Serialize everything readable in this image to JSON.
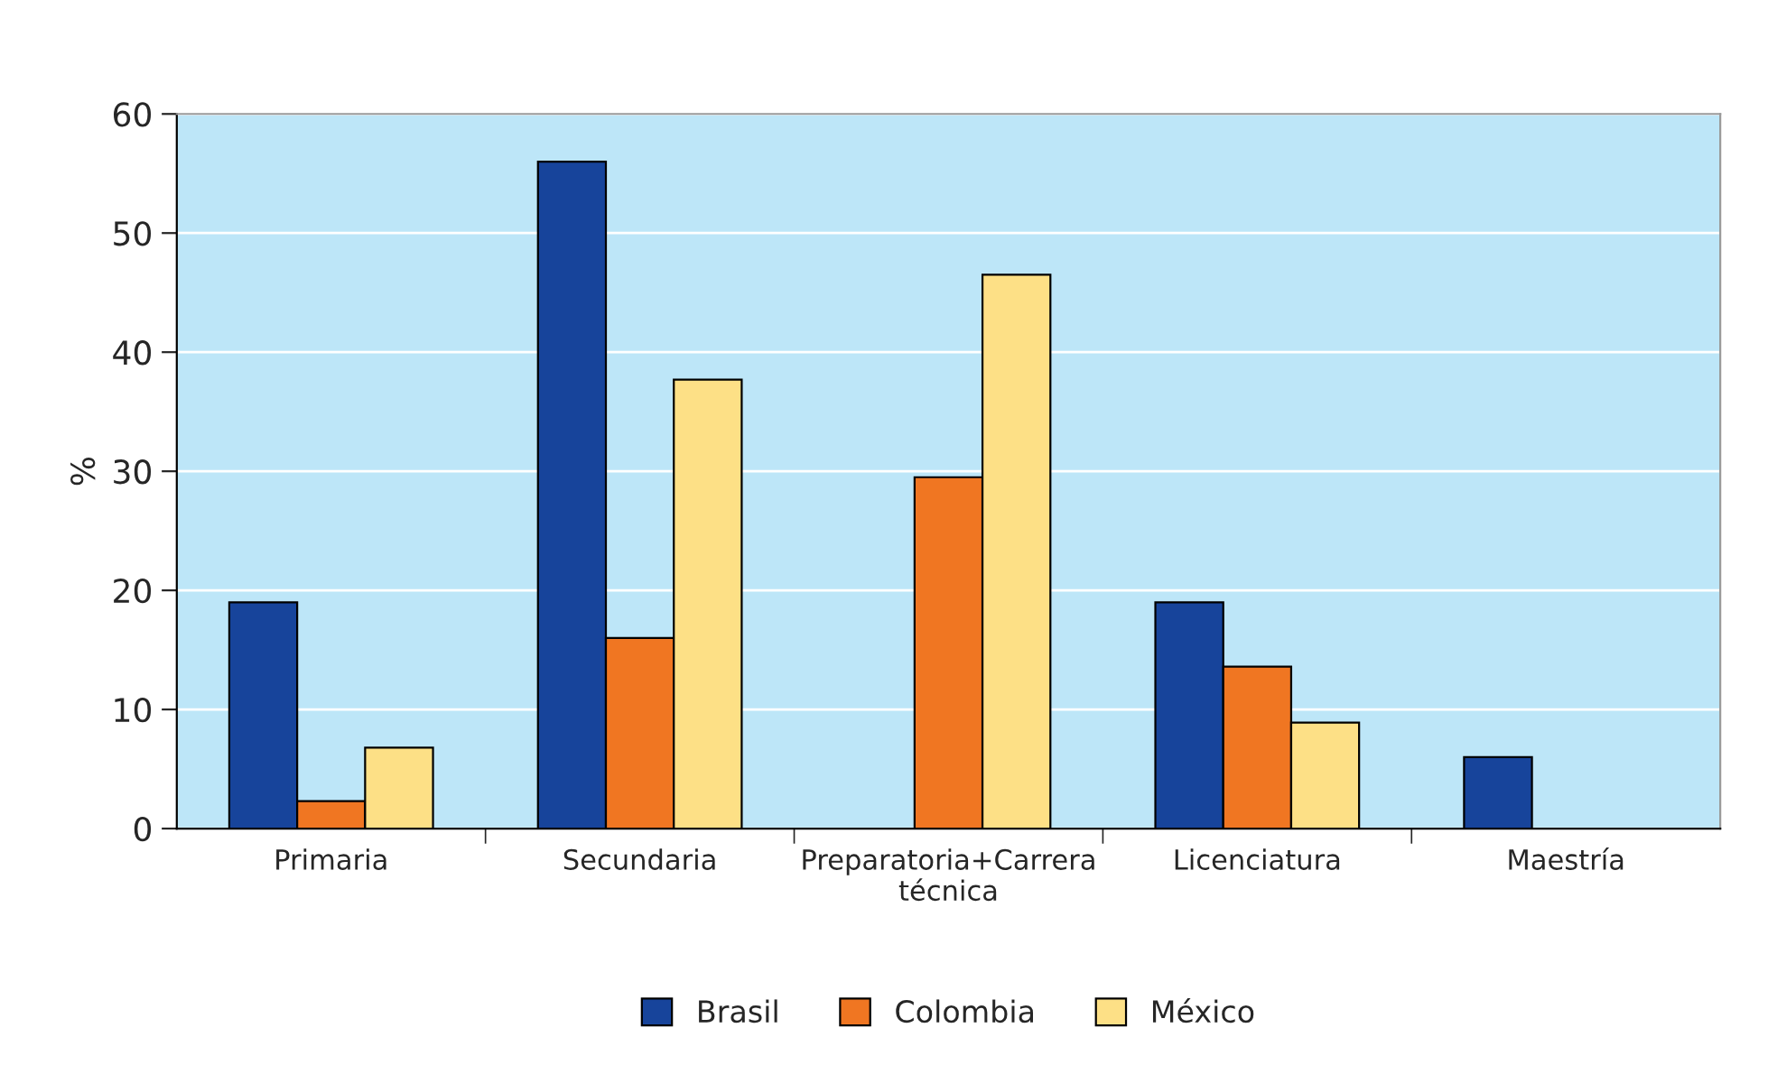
{
  "chart_data": {
    "type": "bar",
    "ylabel": "%",
    "categories": [
      "Primaria",
      "Secundaria",
      "Preparatoria+Carrera\ntécnica",
      "Licenciatura",
      "Maestría"
    ],
    "series": [
      {
        "name": "Brasil",
        "color": "#17449b",
        "values": [
          19,
          56,
          null,
          19,
          6
        ]
      },
      {
        "name": "Colombia",
        "color": "#f07622",
        "values": [
          2.3,
          16,
          29.5,
          13.6,
          null
        ]
      },
      {
        "name": "México",
        "color": "#fde086",
        "values": [
          6.8,
          37.7,
          46.5,
          8.9,
          null
        ]
      }
    ],
    "ylim": [
      0,
      60
    ],
    "yticks": [
      0,
      10,
      20,
      30,
      40,
      50,
      60
    ],
    "grid": "y",
    "legend": "bottom"
  }
}
